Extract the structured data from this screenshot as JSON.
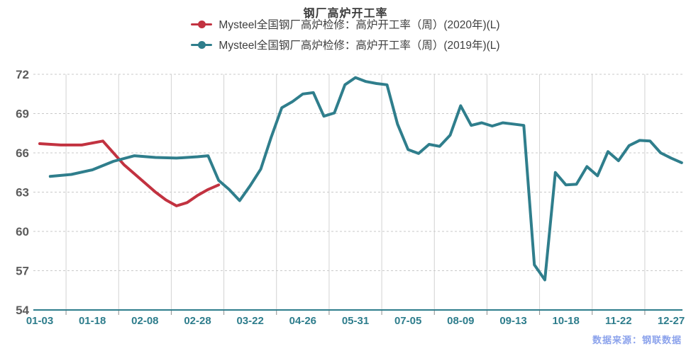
{
  "title": "钢厂高炉开工率",
  "footer": {
    "source": "数据来源：钢联数据"
  },
  "colors": {
    "series_2020": "#c23240",
    "series_2019": "#2f7e8c",
    "title_text": "#3c3c3c",
    "legend_text": "#3f3f3f",
    "y_label": "#5c5c5c",
    "x_label": "#2e7d8c",
    "grid_h": "#c9c9c9",
    "grid_v": "#d2d2d2",
    "axis_line": "#2e7d8c",
    "tick": "#8c8c8c",
    "source_text": "#8ca3ec",
    "background": "#ffffff"
  },
  "chart_data": {
    "type": "line",
    "title": "钢厂高炉开工率",
    "xlabel": "",
    "ylabel": "",
    "ylim": [
      54,
      72
    ],
    "y_ticks": [
      54,
      57,
      60,
      63,
      66,
      69,
      72
    ],
    "grid": true,
    "legend_position": "top",
    "x_label_step": 5,
    "category_index_max": 61,
    "x_labels": [
      "01-03",
      "01-18",
      "02-08",
      "02-28",
      "03-22",
      "04-26",
      "05-31",
      "07-05",
      "08-09",
      "09-13",
      "10-18",
      "11-22",
      "12-27"
    ],
    "x_label_indices": [
      0,
      5,
      10,
      15,
      20,
      25,
      30,
      35,
      40,
      45,
      50,
      55,
      60
    ],
    "source_note": "数据来源：钢联数据",
    "series": [
      {
        "name": "Mysteel全国钢厂高炉检修：高炉开工率（周）(2020年)(L)",
        "color": "#c23240",
        "points": [
          [
            0,
            66.7
          ],
          [
            2,
            66.6
          ],
          [
            4,
            66.6
          ],
          [
            6,
            66.9
          ],
          [
            8,
            65.1
          ],
          [
            10,
            63.7
          ],
          [
            11,
            63.0
          ],
          [
            12,
            62.4
          ],
          [
            13,
            61.95
          ],
          [
            14,
            62.2
          ],
          [
            15,
            62.75
          ],
          [
            16,
            63.2
          ],
          [
            17,
            63.55
          ]
        ]
      },
      {
        "name": "Mysteel全国钢厂高炉检修：高炉开工率（周）(2019年)(L)",
        "color": "#2f7e8c",
        "points": [
          [
            1,
            64.2
          ],
          [
            3,
            64.35
          ],
          [
            5,
            64.7
          ],
          [
            7,
            65.35
          ],
          [
            9,
            65.78
          ],
          [
            11,
            65.65
          ],
          [
            13,
            65.6
          ],
          [
            15,
            65.7
          ],
          [
            16,
            65.78
          ],
          [
            17,
            63.9
          ],
          [
            18,
            63.2
          ],
          [
            19,
            62.35
          ],
          [
            20,
            63.5
          ],
          [
            21,
            64.75
          ],
          [
            22,
            67.2
          ],
          [
            23,
            69.45
          ],
          [
            24,
            69.9
          ],
          [
            25,
            70.5
          ],
          [
            26,
            70.6
          ],
          [
            27,
            68.8
          ],
          [
            28,
            69.05
          ],
          [
            29,
            71.2
          ],
          [
            30,
            71.75
          ],
          [
            31,
            71.45
          ],
          [
            32,
            71.3
          ],
          [
            33,
            71.2
          ],
          [
            34,
            68.2
          ],
          [
            35,
            66.25
          ],
          [
            36,
            65.95
          ],
          [
            37,
            66.65
          ],
          [
            38,
            66.5
          ],
          [
            39,
            67.35
          ],
          [
            40,
            69.6
          ],
          [
            41,
            68.1
          ],
          [
            42,
            68.3
          ],
          [
            43,
            68.05
          ],
          [
            44,
            68.3
          ],
          [
            45,
            68.2
          ],
          [
            46,
            68.1
          ],
          [
            47,
            57.45
          ],
          [
            48,
            56.3
          ],
          [
            49,
            64.5
          ],
          [
            50,
            63.55
          ],
          [
            51,
            63.6
          ],
          [
            52,
            64.95
          ],
          [
            53,
            64.25
          ],
          [
            54,
            66.1
          ],
          [
            55,
            65.4
          ],
          [
            56,
            66.55
          ],
          [
            57,
            66.95
          ],
          [
            58,
            66.9
          ],
          [
            59,
            66.0
          ],
          [
            60,
            65.6
          ],
          [
            61,
            65.25
          ]
        ]
      }
    ]
  }
}
